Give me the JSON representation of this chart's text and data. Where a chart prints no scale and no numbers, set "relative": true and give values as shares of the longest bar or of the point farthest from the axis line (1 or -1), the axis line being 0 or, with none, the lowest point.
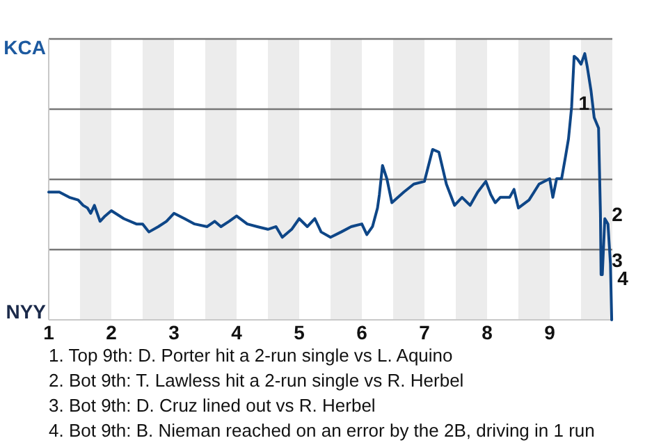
{
  "chart_data": {
    "type": "line",
    "relative": true,
    "color": "#0e4687",
    "line_style": "solid",
    "marker": "none",
    "grid": "y",
    "xlim": [
      1,
      10
    ],
    "xticks": [
      1,
      2,
      3,
      4,
      5,
      6,
      7,
      8,
      9
    ],
    "x": [
      1,
      1.17,
      1.33,
      1.47,
      1.55,
      1.62,
      1.67,
      1.73,
      1.82,
      1.9,
      2,
      2.2,
      2.4,
      2.5,
      2.6,
      2.75,
      2.88,
      3,
      3.17,
      3.33,
      3.53,
      3.65,
      3.75,
      3.88,
      4,
      4.17,
      4.33,
      4.5,
      4.63,
      4.73,
      4.88,
      5,
      5.13,
      5.25,
      5.35,
      5.5,
      5.67,
      5.83,
      6,
      6.08,
      6.17,
      6.25,
      6.28,
      6.33,
      6.4,
      6.48,
      6.67,
      6.83,
      7,
      7.13,
      7.23,
      7.35,
      7.48,
      7.6,
      7.73,
      7.85,
      7.98,
      8.06,
      8.13,
      8.21,
      8.36,
      8.43,
      8.5,
      8.67,
      8.83,
      9,
      9.05,
      9.11,
      9.19,
      9.25,
      9.3,
      9.35,
      9.39,
      9.44,
      9.5,
      9.56,
      9.6,
      9.66,
      9.71,
      9.78,
      9.81,
      9.82,
      9.84,
      9.88,
      9.93,
      9.97,
      9.99
    ],
    "values": [
      0.48,
      0.48,
      0.46,
      0.45,
      0.43,
      0.42,
      0.4,
      0.43,
      0.37,
      0.39,
      0.41,
      0.38,
      0.36,
      0.36,
      0.33,
      0.35,
      0.37,
      0.4,
      0.38,
      0.36,
      0.35,
      0.37,
      0.35,
      0.37,
      0.39,
      0.36,
      0.35,
      0.34,
      0.35,
      0.31,
      0.34,
      0.38,
      0.35,
      0.38,
      0.33,
      0.31,
      0.33,
      0.35,
      0.36,
      0.32,
      0.35,
      0.42,
      0.47,
      0.58,
      0.53,
      0.44,
      0.48,
      0.51,
      0.52,
      0.64,
      0.63,
      0.51,
      0.43,
      0.46,
      0.43,
      0.48,
      0.52,
      0.47,
      0.44,
      0.46,
      0.46,
      0.49,
      0.42,
      0.45,
      0.51,
      0.53,
      0.46,
      0.53,
      0.53,
      0.61,
      0.68,
      0.8,
      0.99,
      0.98,
      0.96,
      1,
      0.95,
      0.86,
      0.76,
      0.72,
      0.4,
      0.17,
      0.17,
      0.38,
      0.36,
      0.21,
      0
    ],
    "bands": [
      {
        "axis": "x",
        "from": 1.5,
        "to": 2,
        "color": "#ececec"
      },
      {
        "axis": "x",
        "from": 2.5,
        "to": 3,
        "color": "#ececec"
      },
      {
        "axis": "x",
        "from": 3.5,
        "to": 4,
        "color": "#ececec"
      },
      {
        "axis": "x",
        "from": 4.5,
        "to": 5,
        "color": "#ececec"
      },
      {
        "axis": "x",
        "from": 5.5,
        "to": 6,
        "color": "#ececec"
      },
      {
        "axis": "x",
        "from": 6.5,
        "to": 7,
        "color": "#ececec"
      },
      {
        "axis": "x",
        "from": 7.5,
        "to": 8,
        "color": "#ececec"
      },
      {
        "axis": "x",
        "from": 8.5,
        "to": 9,
        "color": "#ececec"
      },
      {
        "axis": "x",
        "from": 9.5,
        "to": 10,
        "color": "#ececec"
      }
    ],
    "annotations": [
      {
        "text": "KCA"
      },
      {
        "text": "NYY"
      },
      {
        "text": "1",
        "x": 9.35,
        "y": 0.8
      },
      {
        "text": "2",
        "x": 9.88,
        "y": 0.38
      },
      {
        "text": "3",
        "x": 9.88,
        "y": 0.21
      },
      {
        "text": "4",
        "x": 9.97,
        "y": 0.14
      },
      "1. Top 9th: D. Porter hit a 2-run single vs L. Aquino",
      "2. Bot 9th: T. Lawless hit a 2-run single vs R. Herbel",
      "3. Bot 9th: D. Cruz lined out vs R. Herbel",
      "4. Bot 9th: B. Nieman reached on an error by the 2B, driving in 1 run"
    ]
  }
}
